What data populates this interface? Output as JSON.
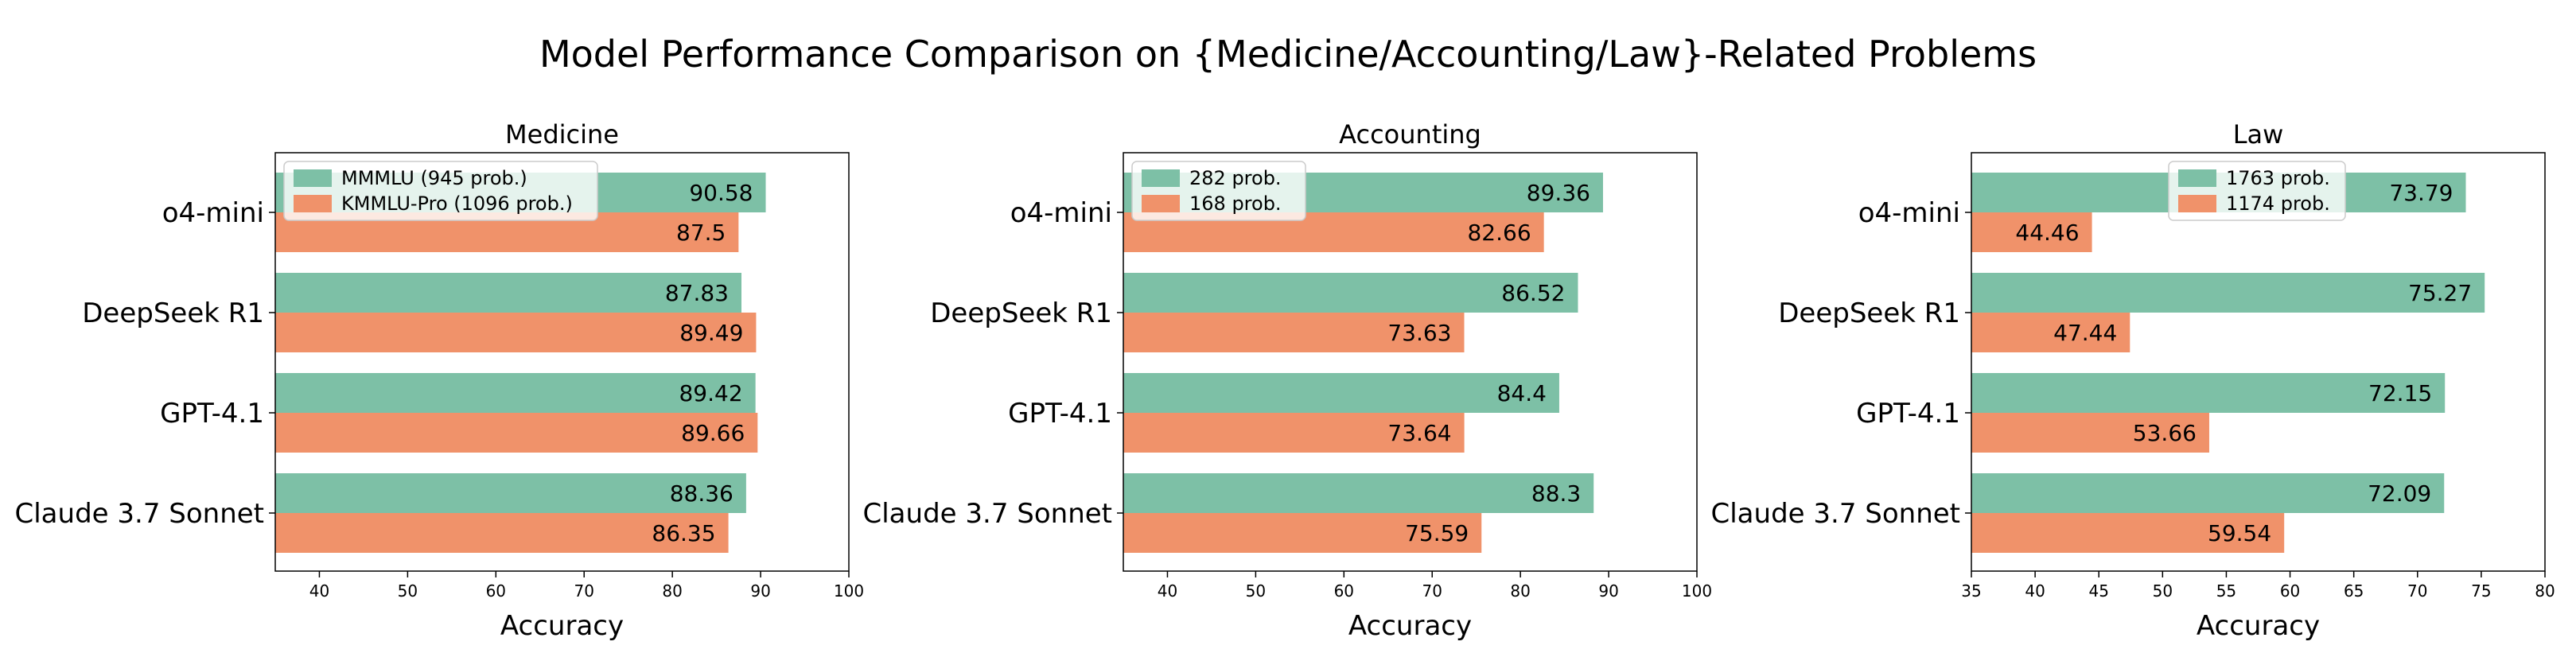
{
  "figure": {
    "title": "Model Performance Comparison on {Medicine/Accounting/Law}-Related Problems"
  },
  "colors": {
    "series_a": "#7dc0a6",
    "series_b": "#f0926a"
  },
  "chart_data": [
    {
      "type": "bar",
      "orientation": "horizontal",
      "title": "Medicine",
      "xlabel": "Accuracy",
      "ylabel": "",
      "categories": [
        "o4-mini",
        "DeepSeek R1",
        "GPT-4.1",
        "Claude 3.7 Sonnet"
      ],
      "series": [
        {
          "name": "MMMLU (945 prob.)",
          "values": [
            90.58,
            87.83,
            89.42,
            88.36
          ]
        },
        {
          "name": "KMMLU-Pro (1096 prob.)",
          "values": [
            87.5,
            89.49,
            89.66,
            86.35
          ]
        }
      ],
      "xlim": [
        35,
        100
      ],
      "xticks": [
        40,
        50,
        60,
        70,
        80,
        90,
        100
      ],
      "legend": "top-left",
      "grid": false
    },
    {
      "type": "bar",
      "orientation": "horizontal",
      "title": "Accounting",
      "xlabel": "Accuracy",
      "ylabel": "",
      "categories": [
        "o4-mini",
        "DeepSeek R1",
        "GPT-4.1",
        "Claude 3.7 Sonnet"
      ],
      "series": [
        {
          "name": "282 prob.",
          "values": [
            89.36,
            86.52,
            84.4,
            88.3
          ]
        },
        {
          "name": "168 prob.",
          "values": [
            82.66,
            73.63,
            73.64,
            75.59
          ]
        }
      ],
      "xlim": [
        35,
        100
      ],
      "xticks": [
        40,
        50,
        60,
        70,
        80,
        90,
        100
      ],
      "legend": "top-left",
      "grid": false
    },
    {
      "type": "bar",
      "orientation": "horizontal",
      "title": "Law",
      "xlabel": "Accuracy",
      "ylabel": "",
      "categories": [
        "o4-mini",
        "DeepSeek R1",
        "GPT-4.1",
        "Claude 3.7 Sonnet"
      ],
      "series": [
        {
          "name": "1763 prob.",
          "values": [
            73.79,
            75.27,
            72.15,
            72.09
          ]
        },
        {
          "name": "1174 prob.",
          "values": [
            44.46,
            47.44,
            53.66,
            59.54
          ]
        }
      ],
      "xlim": [
        35,
        80
      ],
      "xticks": [
        35,
        40,
        45,
        50,
        55,
        60,
        65,
        70,
        75,
        80
      ],
      "legend": "upper-center",
      "grid": false
    }
  ]
}
